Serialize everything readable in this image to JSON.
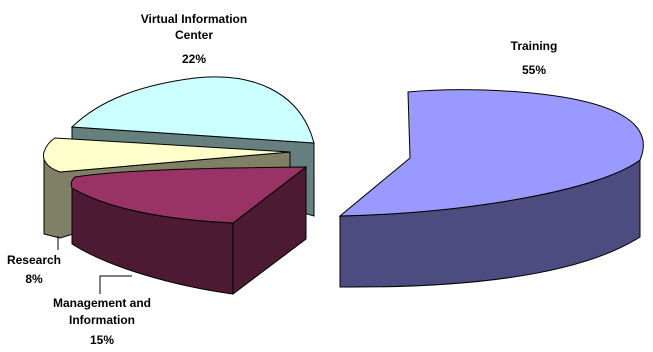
{
  "chart_data": {
    "type": "pie",
    "title": "",
    "style": "3d-exploded",
    "slices": [
      {
        "label_lines": [
          "Training"
        ],
        "value": 55,
        "value_label": "55%",
        "color": "#9999ff",
        "side_color": "#4c4c80"
      },
      {
        "label_lines": [
          "Management and",
          "Information"
        ],
        "value": 15,
        "value_label": "15%",
        "color": "#993366",
        "side_color": "#4d1a33"
      },
      {
        "label_lines": [
          "Research"
        ],
        "value": 8,
        "value_label": "8%",
        "color": "#ffffcc",
        "side_color": "#808066"
      },
      {
        "label_lines": [
          "Virtual Information",
          "Center"
        ],
        "value": 22,
        "value_label": "22%",
        "color": "#ccffff",
        "side_color": "#668080"
      }
    ]
  }
}
